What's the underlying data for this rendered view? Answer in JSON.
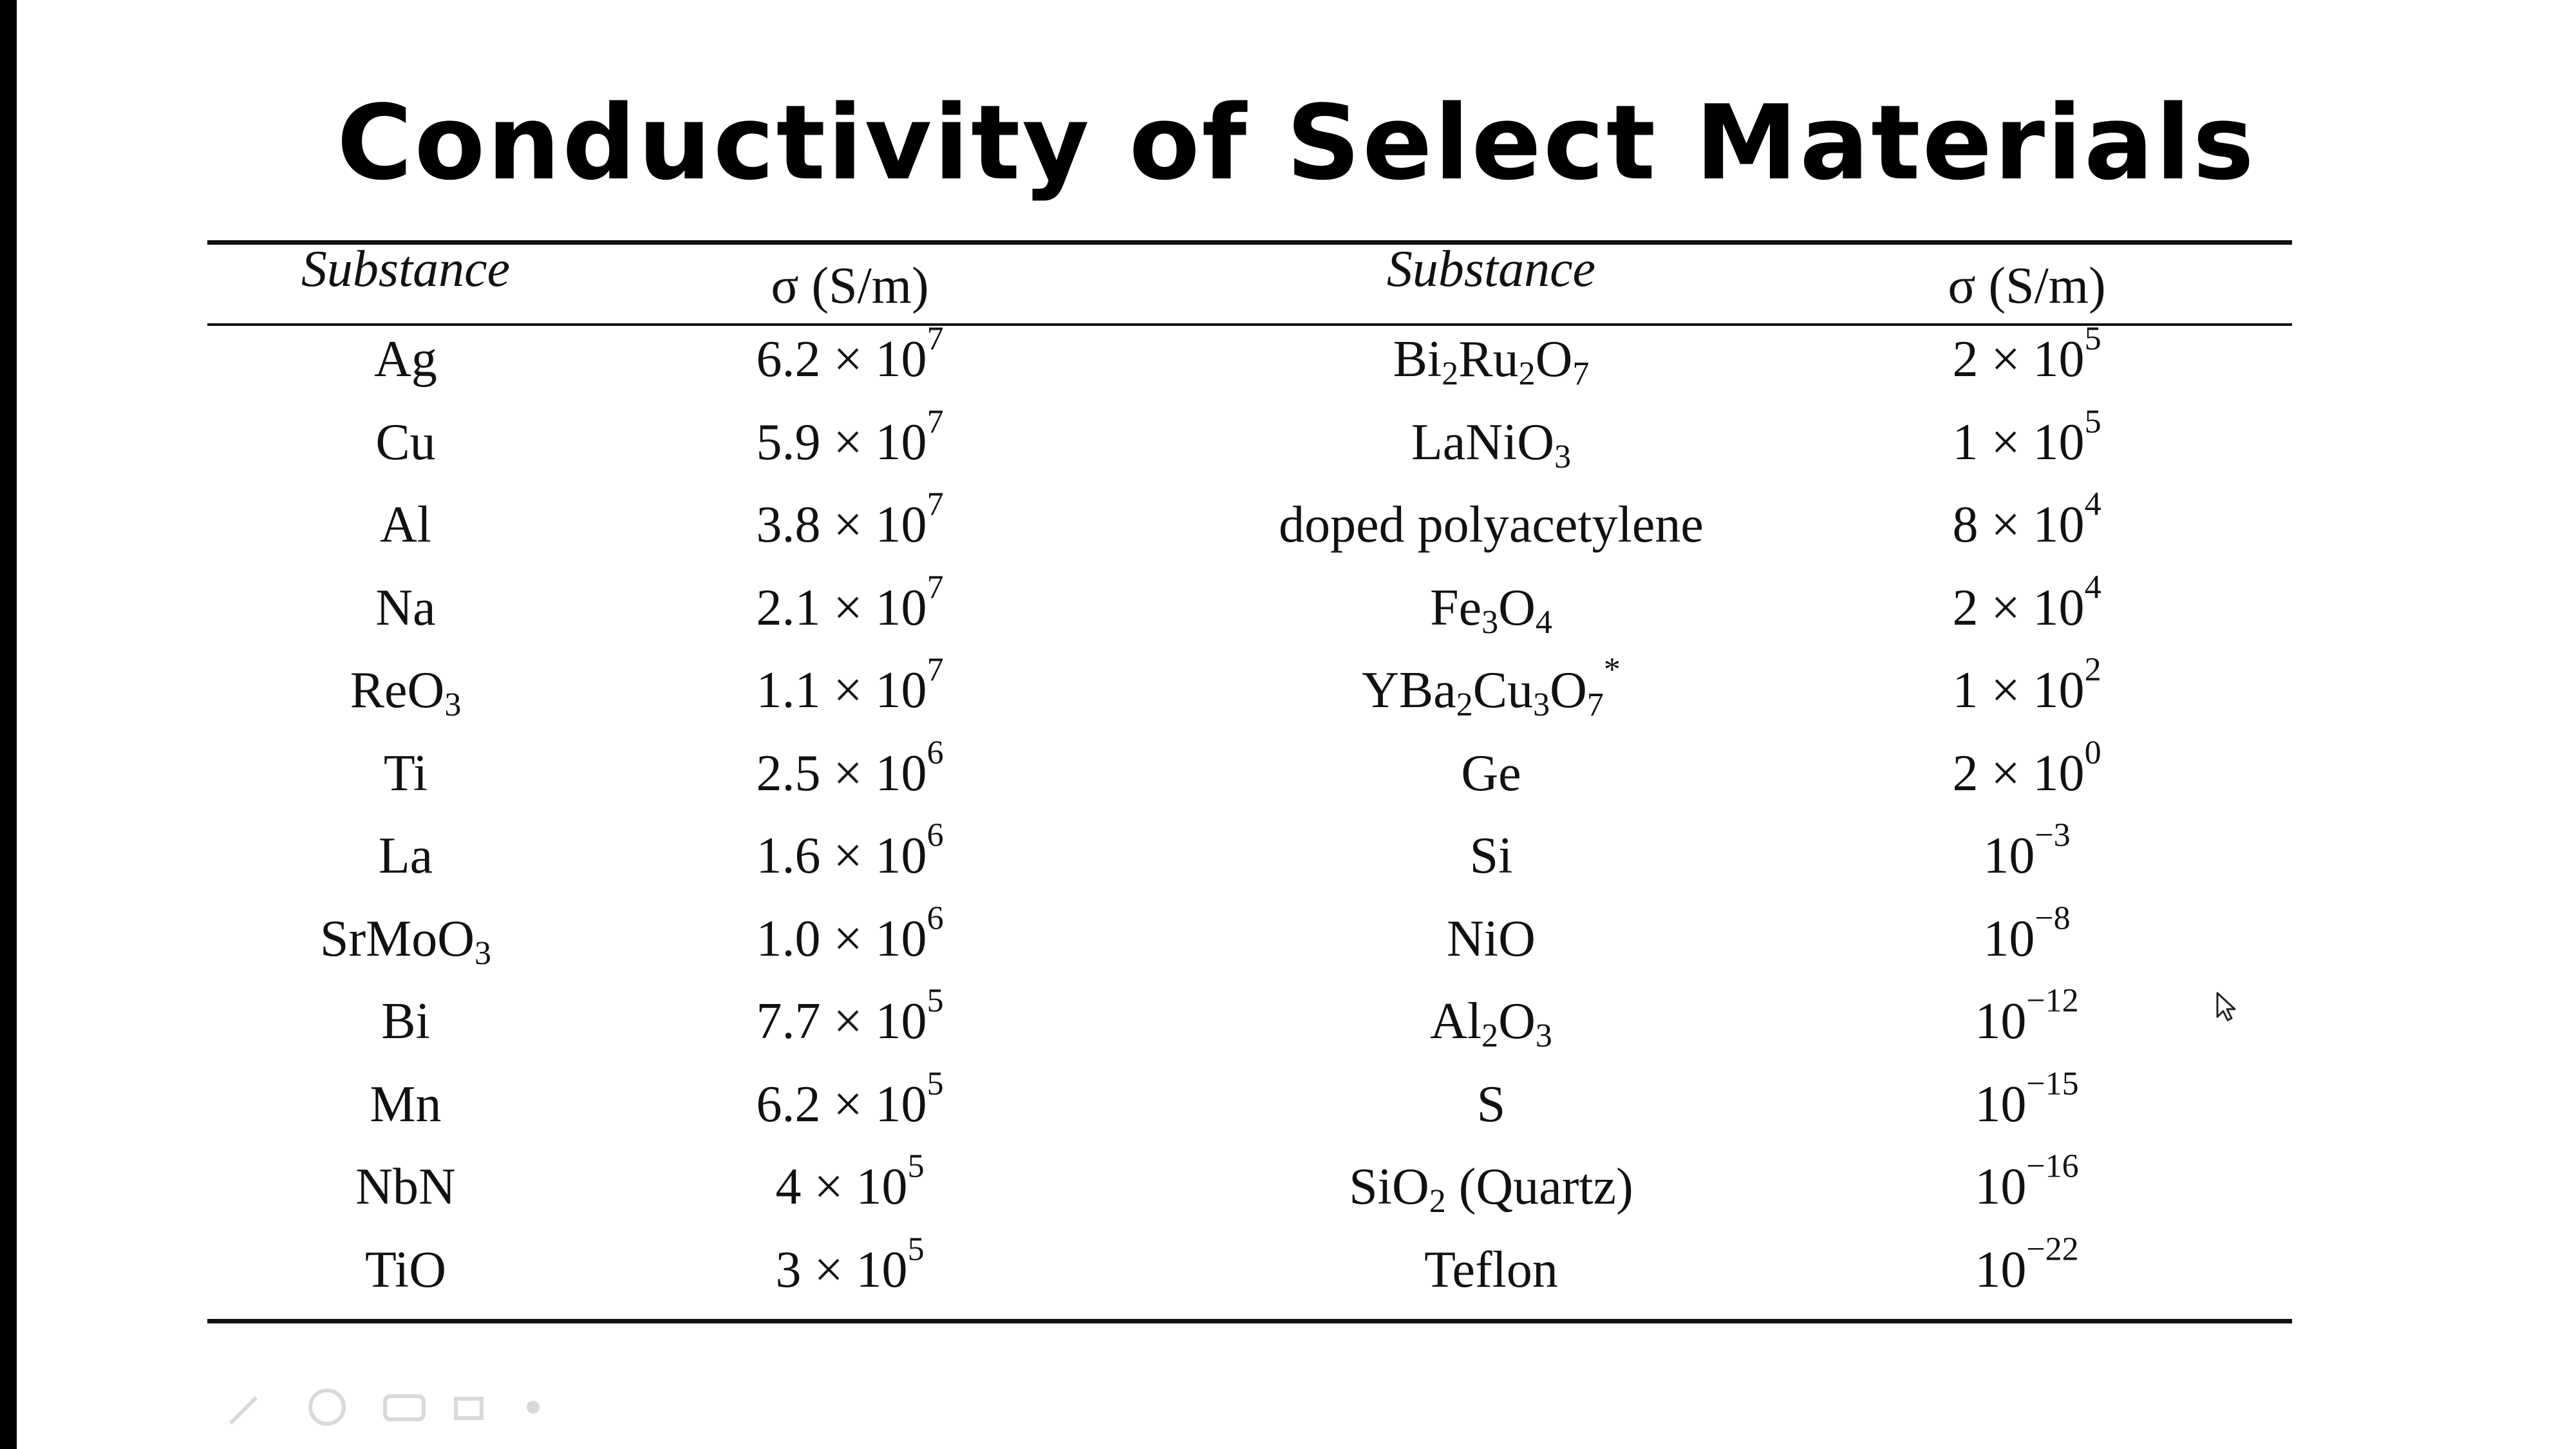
{
  "slide": {
    "title": "Conductivity of Select Materials",
    "headers": [
      "Substance",
      "σ (S/m)",
      "Substance",
      "σ (S/m)"
    ],
    "rows": [
      [
        [
          "Ag"
        ],
        [
          "6.2 × 10",
          {
            "sup": "7"
          }
        ],
        [
          "Bi",
          {
            "sub": "2"
          },
          "Ru",
          {
            "sub": "2"
          },
          "O",
          {
            "sub": "7"
          }
        ],
        [
          "2 × 10",
          {
            "sup": "5"
          }
        ]
      ],
      [
        [
          "Cu"
        ],
        [
          "5.9 × 10",
          {
            "sup": "7"
          }
        ],
        [
          "LaNiO",
          {
            "sub": "3"
          }
        ],
        [
          "1 × 10",
          {
            "sup": "5"
          }
        ]
      ],
      [
        [
          "Al"
        ],
        [
          "3.8 × 10",
          {
            "sup": "7"
          }
        ],
        [
          "doped polyacetylene"
        ],
        [
          "8 × 10",
          {
            "sup": "4"
          }
        ]
      ],
      [
        [
          "Na"
        ],
        [
          "2.1 × 10",
          {
            "sup": "7"
          }
        ],
        [
          "Fe",
          {
            "sub": "3"
          },
          "O",
          {
            "sub": "4"
          }
        ],
        [
          "2 × 10",
          {
            "sup": "4"
          }
        ]
      ],
      [
        [
          "ReO",
          {
            "sub": "3"
          }
        ],
        [
          "1.1 × 10",
          {
            "sup": "7"
          }
        ],
        [
          "YBa",
          {
            "sub": "2"
          },
          "Cu",
          {
            "sub": "3"
          },
          "O",
          {
            "sub": "7"
          },
          {
            "sup": "*"
          }
        ],
        [
          "1 × 10",
          {
            "sup": "2"
          }
        ]
      ],
      [
        [
          "Ti"
        ],
        [
          "2.5 × 10",
          {
            "sup": "6"
          }
        ],
        [
          "Ge"
        ],
        [
          "2 × 10",
          {
            "sup": "0"
          }
        ]
      ],
      [
        [
          "La"
        ],
        [
          "1.6 × 10",
          {
            "sup": "6"
          }
        ],
        [
          "Si"
        ],
        [
          "10",
          {
            "sup": "−3"
          }
        ]
      ],
      [
        [
          "SrMoO",
          {
            "sub": "3"
          }
        ],
        [
          "1.0 × 10",
          {
            "sup": "6"
          }
        ],
        [
          "NiO"
        ],
        [
          "10",
          {
            "sup": "−8"
          }
        ]
      ],
      [
        [
          "Bi"
        ],
        [
          "7.7 × 10",
          {
            "sup": "5"
          }
        ],
        [
          "Al",
          {
            "sub": "2"
          },
          "O",
          {
            "sub": "3"
          }
        ],
        [
          "10",
          {
            "sup": "−12"
          }
        ]
      ],
      [
        [
          "Mn"
        ],
        [
          "6.2 × 10",
          {
            "sup": "5"
          }
        ],
        [
          "S"
        ],
        [
          "10",
          {
            "sup": "−15"
          }
        ]
      ],
      [
        [
          "NbN"
        ],
        [
          "4 × 10",
          {
            "sup": "5"
          }
        ],
        [
          "SiO",
          {
            "sub": "2"
          },
          " (Quartz)"
        ],
        [
          "10",
          {
            "sup": "−16"
          }
        ]
      ],
      [
        [
          "TiO"
        ],
        [
          "3 × 10",
          {
            "sup": "5"
          }
        ],
        [
          "Teflon"
        ],
        [
          "10",
          {
            "sup": "−22"
          }
        ]
      ]
    ]
  },
  "colors": {
    "background": "#ffffff",
    "text": "#111111",
    "frame": "#000000"
  },
  "icons": [
    "mouse-cursor-icon",
    "presentation-toolbar-icons"
  ]
}
